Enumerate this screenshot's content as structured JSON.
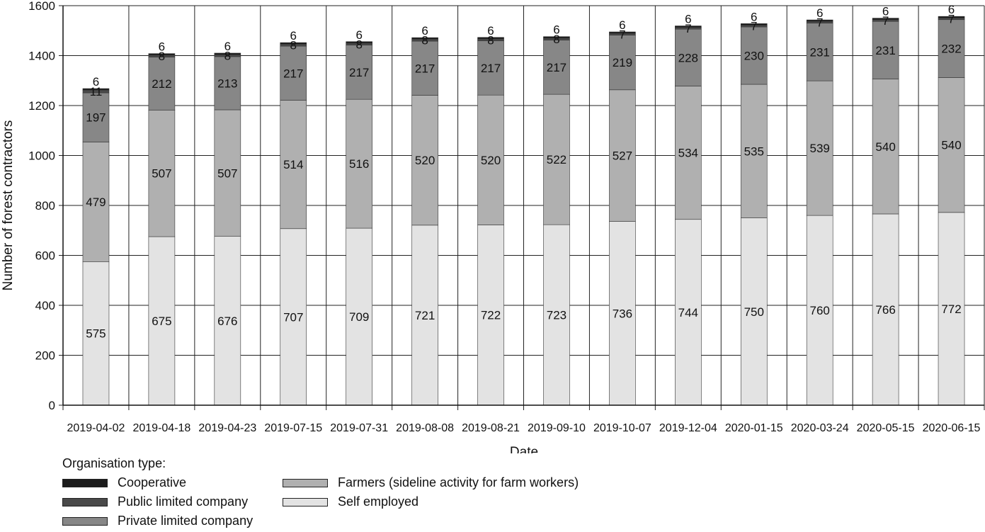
{
  "chart_data": {
    "type": "bar",
    "stacked": true,
    "xlabel": "Date",
    "ylabel": "Number of forest contractors",
    "ylim": [
      0,
      1600
    ],
    "yticks": [
      0,
      200,
      400,
      600,
      800,
      1000,
      1200,
      1400,
      1600
    ],
    "grid": true,
    "categories": [
      "2019-04-02",
      "2019-04-18",
      "2019-04-23",
      "2019-07-15",
      "2019-07-31",
      "2019-08-08",
      "2019-08-21",
      "2019-09-10",
      "2019-10-07",
      "2019-12-04",
      "2020-01-15",
      "2020-03-24",
      "2020-05-15",
      "2020-06-15"
    ],
    "series": [
      {
        "name": "Self employed",
        "color": "#e3e3e3",
        "values": [
          575,
          675,
          676,
          707,
          709,
          721,
          722,
          723,
          736,
          744,
          750,
          760,
          766,
          772
        ]
      },
      {
        "name": "Farmers (sideline activity for farm workers)",
        "color": "#b0b0b0",
        "values": [
          479,
          507,
          507,
          514,
          516,
          520,
          520,
          522,
          527,
          534,
          535,
          539,
          540,
          540
        ]
      },
      {
        "name": "Private limited company",
        "color": "#878787",
        "values": [
          197,
          212,
          213,
          217,
          217,
          217,
          217,
          217,
          219,
          228,
          230,
          231,
          231,
          232
        ]
      },
      {
        "name": "Public limited company",
        "color": "#4a4a4a",
        "values": [
          11,
          8,
          8,
          8,
          8,
          8,
          8,
          8,
          7,
          7,
          7,
          7,
          7,
          7
        ]
      },
      {
        "name": "Cooperative",
        "color": "#1c1c1c",
        "values": [
          6,
          6,
          6,
          6,
          6,
          6,
          6,
          6,
          6,
          6,
          6,
          6,
          6,
          6
        ]
      }
    ],
    "legend": {
      "title": "Organisation type:",
      "position": "bottom-left",
      "order": [
        "Cooperative",
        "Public limited company",
        "Private limited company",
        "Farmers (sideline activity for farm workers)",
        "Self employed"
      ]
    }
  }
}
